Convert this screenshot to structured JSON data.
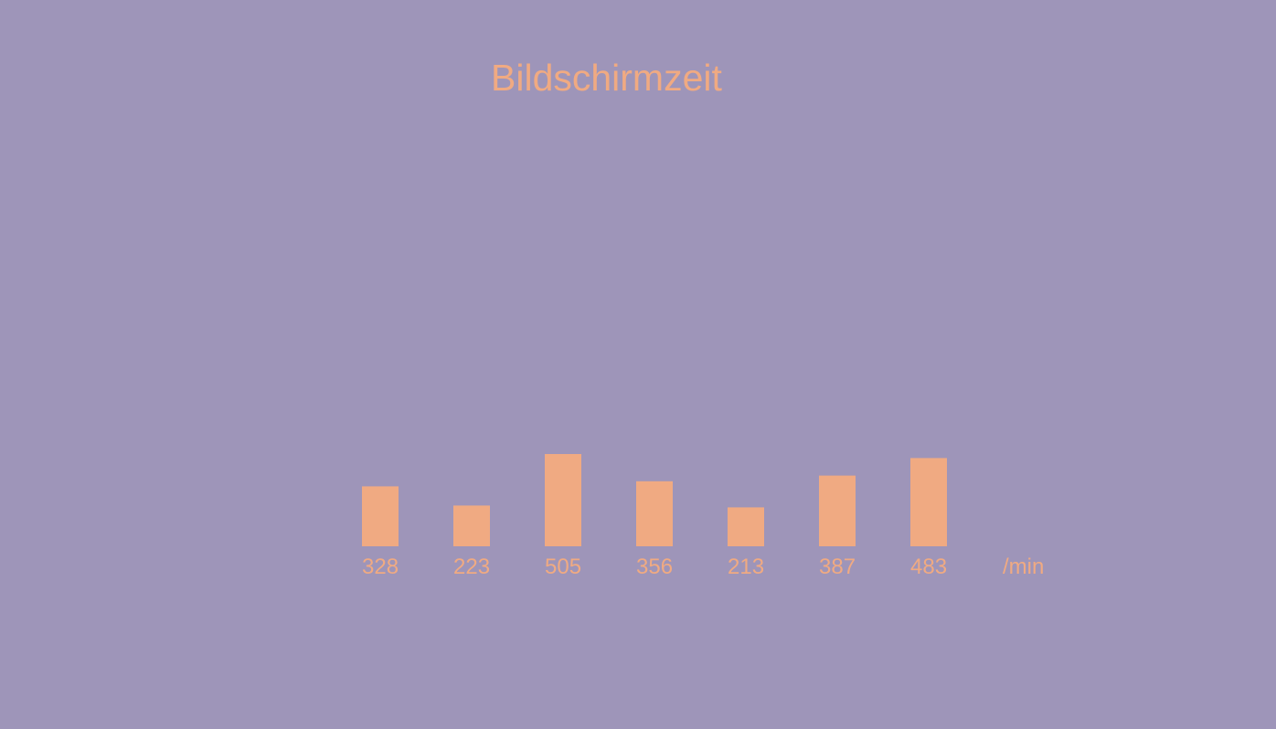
{
  "colors": {
    "background": "#9e95b9",
    "accent": "#f0aa82"
  },
  "chart_data": {
    "type": "bar",
    "title": "Bildschirmzeit",
    "unit": "/min",
    "values": [
      328,
      223,
      505,
      356,
      213,
      387,
      483
    ],
    "data_labels": [
      "328",
      "223",
      "505",
      "356",
      "213",
      "387",
      "483"
    ],
    "grid": false,
    "legend": "none"
  }
}
